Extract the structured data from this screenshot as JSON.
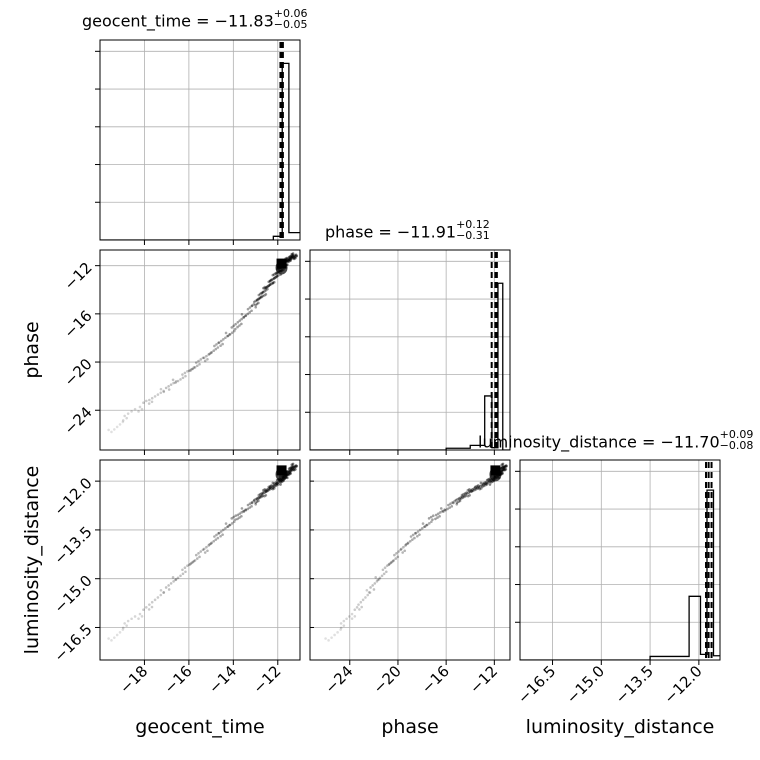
{
  "chart_data": {
    "type": "corner",
    "parameters": [
      "geocent_time",
      "phase",
      "luminosity_distance"
    ],
    "titles": [
      {
        "param": "geocent_time",
        "prefix": "geocent_time = −11.83",
        "plus": "+0.06",
        "minus": "−0.05"
      },
      {
        "param": "phase",
        "prefix": "phase = −11.91",
        "plus": "+0.12",
        "minus": "−0.31"
      },
      {
        "param": "luminosity_distance",
        "prefix": "luminosity_distance = −11.70",
        "plus": "+0.09",
        "minus": "−0.08"
      }
    ],
    "axis_labels": {
      "x": [
        "geocent_time",
        "phase",
        "luminosity_distance"
      ],
      "y": [
        "phase",
        "luminosity_distance"
      ]
    },
    "ranges": {
      "geocent_time": [
        -20.0,
        -11.0
      ],
      "phase": [
        -27.3,
        -10.7
      ],
      "luminosity_distance": [
        -17.5,
        -11.35
      ]
    },
    "ticks": {
      "geocent_time": {
        "values": [
          -18,
          -16,
          -14,
          -12
        ],
        "labels": [
          "−18",
          "−16",
          "−14",
          "−12"
        ]
      },
      "phase": {
        "values": [
          -24,
          -20,
          -16,
          -12
        ],
        "labels": [
          "−24",
          "−20",
          "−16",
          "−12"
        ]
      },
      "luminosity_distance": {
        "values": [
          -16.5,
          -15.0,
          -13.5,
          -12.0
        ],
        "labels": [
          "−16.5",
          "−15.0",
          "−13.5",
          "−12.0"
        ]
      }
    },
    "histograms": {
      "geocent_time": {
        "edges": [
          -20.0,
          -19.0,
          -18.0,
          -17.0,
          -16.0,
          -15.0,
          -14.0,
          -13.0,
          -12.2,
          -11.8,
          -11.5,
          -11.0
        ],
        "counts": [
          0,
          0,
          0,
          0,
          0,
          0,
          0,
          0,
          1,
          48,
          2
        ],
        "max": 50
      },
      "phase": {
        "edges": [
          -27.3,
          -24.0,
          -20.0,
          -16.0,
          -14.0,
          -12.8,
          -12.2,
          -11.7,
          -11.3,
          -10.7
        ],
        "counts": [
          0,
          0,
          0,
          0.15,
          0.4,
          4.7,
          0.2,
          14.5,
          0
        ],
        "max": 16
      },
      "luminosity_distance": {
        "edges": [
          -17.5,
          -16.0,
          -15.0,
          -13.5,
          -12.3,
          -11.95,
          -11.75,
          -11.55,
          -11.35
        ],
        "counts": [
          0,
          0,
          0,
          0.05,
          0.9,
          0.08,
          2.4,
          0.06
        ],
        "max": 2.6
      }
    },
    "quantiles": {
      "geocent_time": [
        -11.88,
        -11.83,
        -11.77
      ],
      "phase": [
        -12.22,
        -11.91,
        -11.79
      ],
      "luminosity_distance": [
        -11.78,
        -11.7,
        -11.61
      ]
    },
    "samples_track": [
      {
        "t": -19.5,
        "p": -25.8,
        "d": -16.9
      },
      {
        "t": -19.0,
        "p": -24.8,
        "d": -16.5
      },
      {
        "t": -18.0,
        "p": -23.5,
        "d": -16.0
      },
      {
        "t": -17.0,
        "p": -22.2,
        "d": -15.3
      },
      {
        "t": -16.0,
        "p": -20.8,
        "d": -14.6
      },
      {
        "t": -15.0,
        "p": -19.2,
        "d": -13.9
      },
      {
        "t": -14.0,
        "p": -17.3,
        "d": -13.2
      },
      {
        "t": -13.0,
        "p": -15.1,
        "d": -12.6
      },
      {
        "t": -12.5,
        "p": -13.9,
        "d": -12.3
      },
      {
        "t": -12.0,
        "p": -12.6,
        "d": -12.05
      },
      {
        "t": -11.6,
        "p": -11.6,
        "d": -11.8
      },
      {
        "t": -11.2,
        "p": -11.1,
        "d": -11.5
      }
    ],
    "mode": {
      "geocent_time": -11.83,
      "phase": -11.91,
      "luminosity_distance": -11.7
    },
    "grid": true
  }
}
